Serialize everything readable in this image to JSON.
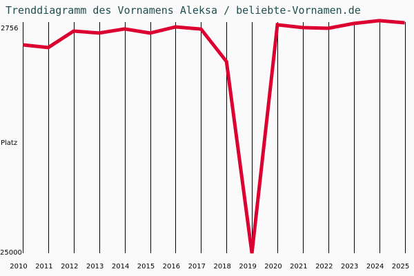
{
  "title": "Trenddiagramm des Vornamens Aleksa / beliebte-Vornamen.de",
  "y_axis": {
    "top_label": "2756",
    "mid_label": "Platz",
    "bottom_label": "25000"
  },
  "colors": {
    "line": "#dc0030",
    "grid": "#000000",
    "title": "#1e4d4d",
    "background": "#fafafa"
  },
  "chart_data": {
    "type": "line",
    "title": "Trenddiagramm des Vornamens Aleksa / beliebte-Vornamen.de",
    "xlabel": "",
    "ylabel": "Platz",
    "ylim": [
      25000,
      2756
    ],
    "y_inverted": true,
    "grid": "vertical",
    "categories": [
      "2010",
      "2011",
      "2012",
      "2013",
      "2014",
      "2015",
      "2016",
      "2017",
      "2018",
      "2019",
      "2020",
      "2021",
      "2022",
      "2023",
      "2024",
      "2025"
    ],
    "series": [
      {
        "name": "Aleksa",
        "values": [
          4330,
          4600,
          2960,
          3160,
          2750,
          3160,
          2550,
          2760,
          5980,
          25000,
          2340,
          2620,
          2690,
          2210,
          1930,
          2140
        ]
      }
    ]
  }
}
